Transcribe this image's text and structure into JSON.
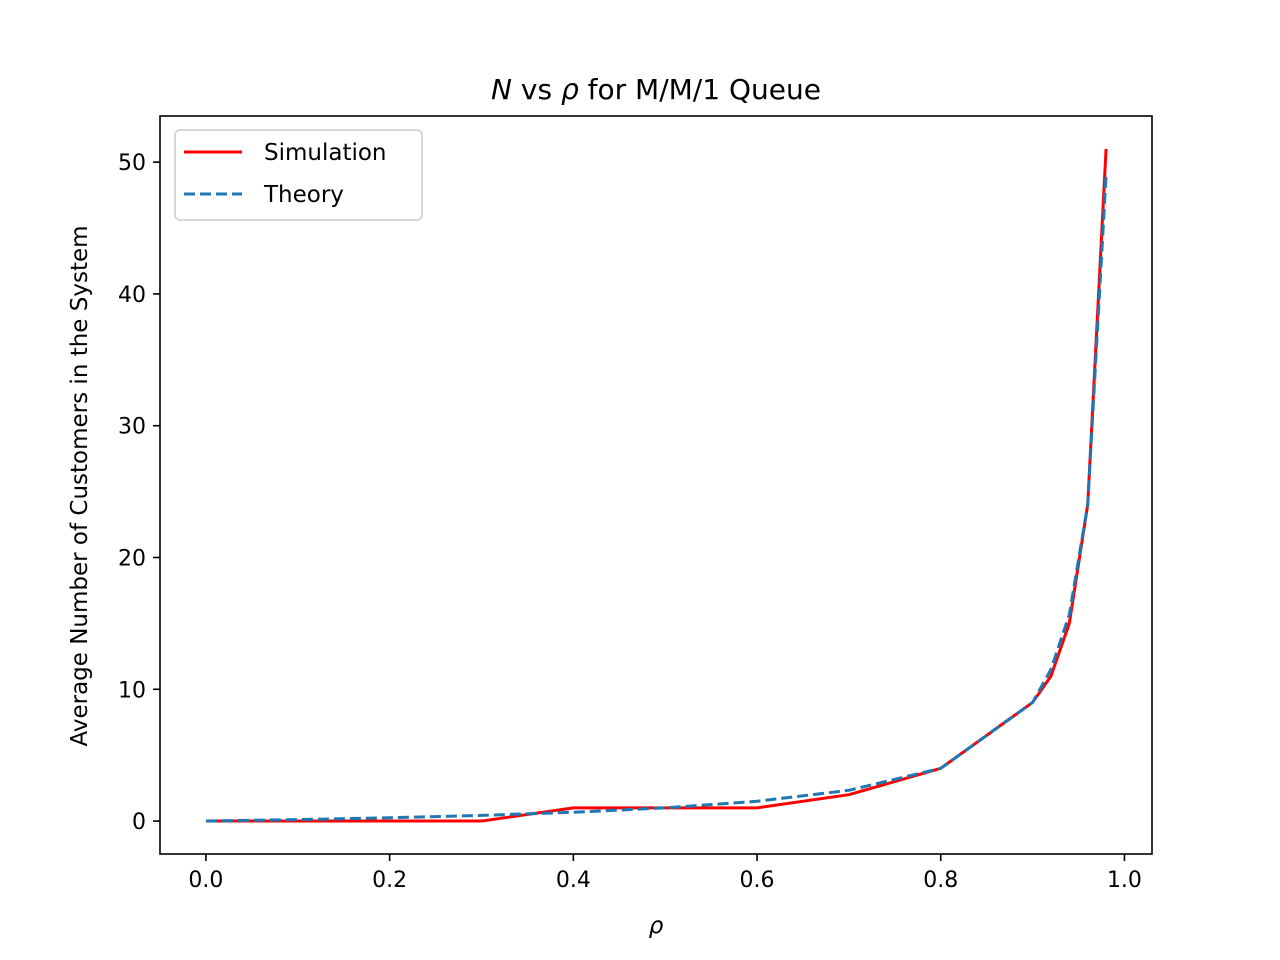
{
  "chart_data": {
    "type": "line",
    "title": {
      "var_n": "N",
      "mid": " vs ",
      "var_rho": "ρ",
      "tail": " for M/M/1 Queue"
    },
    "xlabel": "ρ",
    "ylabel": "Average Number of Customers in the System",
    "xlim": [
      -0.05,
      1.03
    ],
    "ylim": [
      -2.5,
      53.5
    ],
    "xticks": [
      0.0,
      0.2,
      0.4,
      0.6,
      0.8,
      1.0
    ],
    "xtick_labels": [
      "0.0",
      "0.2",
      "0.4",
      "0.6",
      "0.8",
      "1.0"
    ],
    "yticks": [
      0,
      10,
      20,
      30,
      40,
      50
    ],
    "ytick_labels": [
      "0",
      "10",
      "20",
      "30",
      "40",
      "50"
    ],
    "grid": false,
    "legend_position": "top-left",
    "series": [
      {
        "name": "Simulation",
        "color": "#ff0000",
        "style": "solid",
        "x": [
          0.0,
          0.1,
          0.2,
          0.3,
          0.4,
          0.5,
          0.6,
          0.7,
          0.8,
          0.9,
          0.92,
          0.94,
          0.96,
          0.98
        ],
        "y": [
          0,
          0,
          0,
          0,
          1,
          1,
          1,
          2,
          4,
          9,
          11,
          15,
          24,
          51
        ]
      },
      {
        "name": "Theory",
        "color": "#1f77b4",
        "style": "dashed",
        "x": [
          0.0,
          0.1,
          0.2,
          0.3,
          0.4,
          0.5,
          0.6,
          0.7,
          0.8,
          0.9,
          0.92,
          0.94,
          0.96,
          0.98
        ],
        "y": [
          0,
          0.111,
          0.25,
          0.429,
          0.667,
          1.0,
          1.5,
          2.333,
          4.0,
          9.0,
          11.5,
          15.667,
          24.0,
          49.0
        ]
      }
    ]
  }
}
